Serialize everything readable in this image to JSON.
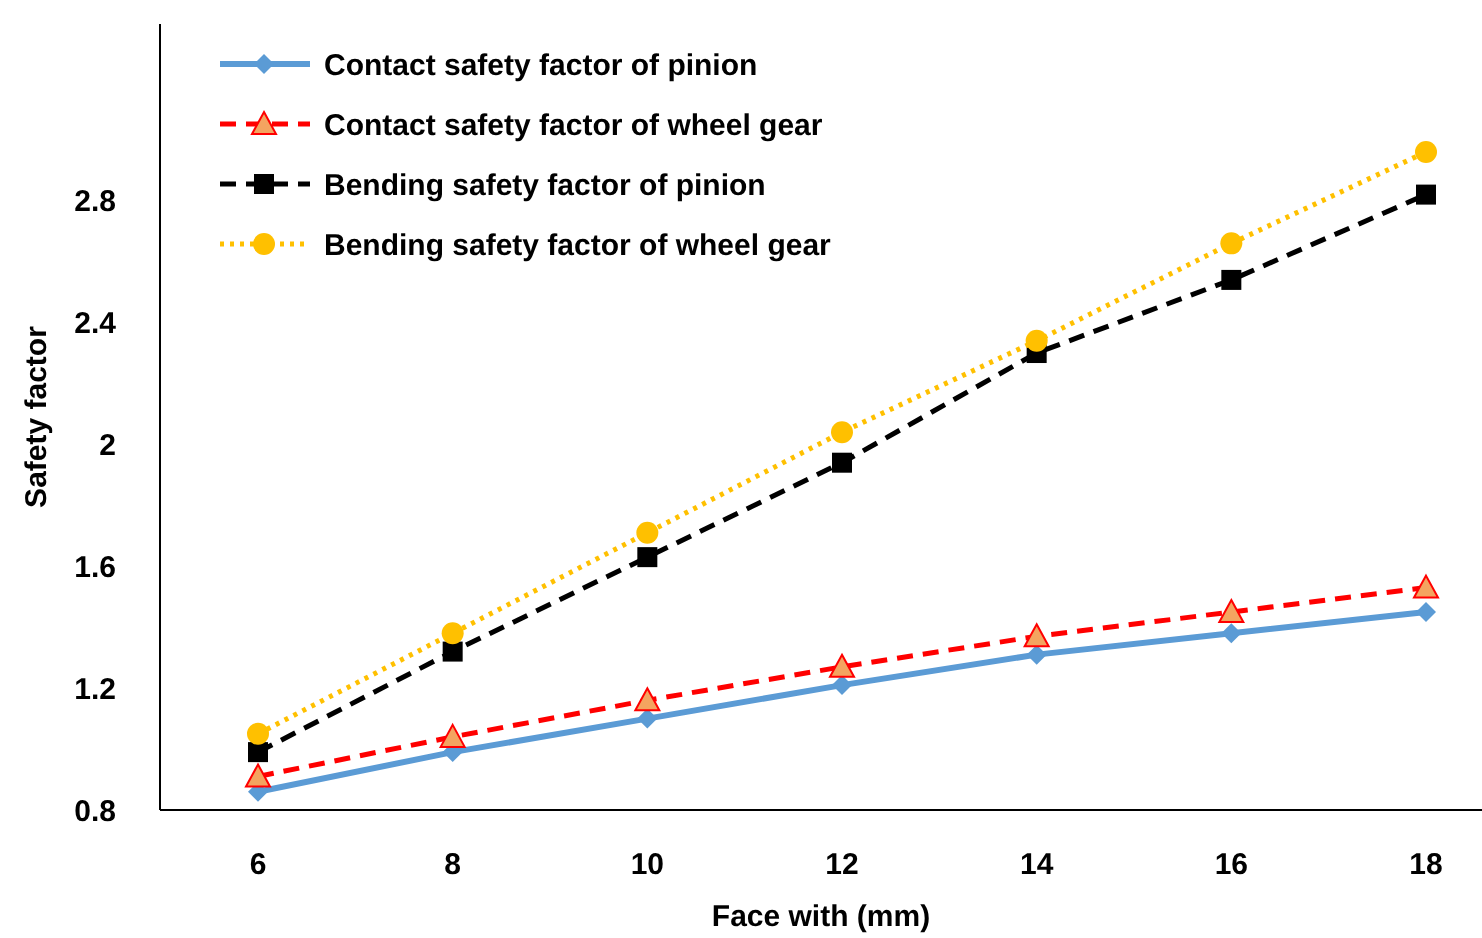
{
  "chart_data": {
    "type": "line",
    "xlabel": "Face with (mm)",
    "ylabel": "Safety factor",
    "categories": [
      "6",
      "8",
      "10",
      "12",
      "14",
      "16",
      "18"
    ],
    "ylim": [
      0.8,
      3.38
    ],
    "yticks": [
      0.8,
      1.2,
      1.6,
      2,
      2.4,
      2.8
    ],
    "grid": false,
    "legend": "top left",
    "series": [
      {
        "name": "Contact safety factor of pinion",
        "color": "#5b9bd5",
        "marker": "diamond",
        "line_style": "solid",
        "values": [
          0.86,
          0.99,
          1.1,
          1.21,
          1.31,
          1.38,
          1.45
        ]
      },
      {
        "name": "Contact safety factor of wheel gear",
        "color": "#ff0000",
        "marker": "triangle",
        "line_style": "dashed",
        "values": [
          0.91,
          1.04,
          1.16,
          1.27,
          1.37,
          1.45,
          1.53
        ]
      },
      {
        "name": "Bending safety factor of pinion",
        "color": "#000000",
        "marker": "square",
        "line_style": "dashed",
        "values": [
          0.99,
          1.32,
          1.63,
          1.94,
          2.3,
          2.54,
          2.82
        ]
      },
      {
        "name": "Bending safety factor of wheel gear",
        "color": "#ffc000",
        "marker": "circle",
        "line_style": "dotted",
        "values": [
          1.05,
          1.38,
          1.71,
          2.04,
          2.34,
          2.66,
          2.96
        ]
      }
    ]
  }
}
